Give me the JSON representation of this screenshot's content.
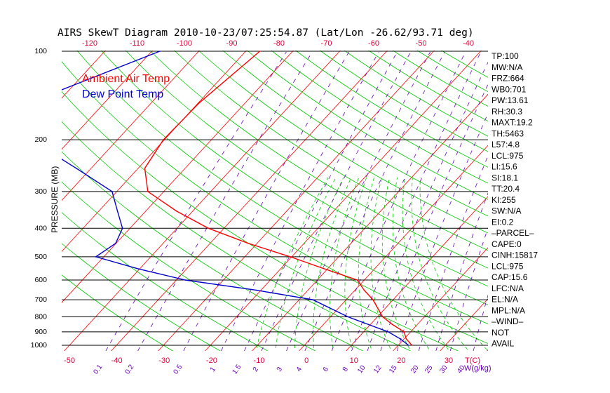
{
  "chart_data": {
    "type": "line",
    "title": "AIRS SkewT Diagram 2010-10-23/07:25:54.87 (Lat/Lon -26.62/93.71 deg)",
    "ylabel": "PRESSURE (MB)",
    "xlabel_unit": "T(C)",
    "mixing_ratio_unit": "W(g/kg)",
    "pressure_ticks": [
      "100",
      "200",
      "300",
      "400",
      "500",
      "600",
      "700",
      "800",
      "900",
      "1000"
    ],
    "top_temp_ticks": [
      "-120",
      "-110",
      "-100",
      "-90",
      "-80",
      "-70",
      "-60",
      "-50",
      "-40"
    ],
    "bottom_temp_ticks": [
      "-50",
      "-40",
      "-30",
      "-20",
      "-10",
      "0",
      "10",
      "20",
      "30"
    ],
    "mixing_ratio_labels": [
      "0.1",
      "0.2",
      "0.5",
      "1",
      "1.5",
      "2",
      "3",
      "4",
      "6",
      "8",
      "10",
      "12",
      "15",
      "20",
      "25",
      "30",
      "40"
    ],
    "legend": [
      {
        "name": "Ambient Air Temp",
        "color": "#ff0000"
      },
      {
        "name": "Dew Point Temp",
        "color": "#0000cc"
      }
    ],
    "series": [
      {
        "name": "Ambient Air Temp",
        "color": "#ff0000",
        "points": [
          {
            "p": 100,
            "t": -67
          },
          {
            "p": 150,
            "t": -69.8
          },
          {
            "p": 200,
            "t": -70.2
          },
          {
            "p": 250,
            "t": -68.6
          },
          {
            "p": 300,
            "t": -63.4
          },
          {
            "p": 350,
            "t": -53.4
          },
          {
            "p": 400,
            "t": -43.3
          },
          {
            "p": 450,
            "t": -31.9
          },
          {
            "p": 500,
            "t": -20.3
          },
          {
            "p": 550,
            "t": -10.6
          },
          {
            "p": 600,
            "t": -1.5
          },
          {
            "p": 650,
            "t": 2.0
          },
          {
            "p": 700,
            "t": 5.7
          },
          {
            "p": 800,
            "t": 11.1
          },
          {
            "p": 850,
            "t": 14.7
          },
          {
            "p": 900,
            "t": 18.6
          },
          {
            "p": 950,
            "t": 20.4
          },
          {
            "p": 1000,
            "t": 22.9
          }
        ]
      },
      {
        "name": "Dew Point Temp",
        "color": "#0000cc",
        "points": [
          {
            "p": 100,
            "t": -88.3
          },
          {
            "p": 150,
            "t": -106.2
          },
          {
            "p": 200,
            "t": -98.5
          },
          {
            "p": 250,
            "t": -83.2
          },
          {
            "p": 300,
            "t": -71.0
          },
          {
            "p": 350,
            "t": -66.0
          },
          {
            "p": 400,
            "t": -61.6
          },
          {
            "p": 450,
            "t": -60.1
          },
          {
            "p": 500,
            "t": -61.7
          },
          {
            "p": 550,
            "t": -50.2
          },
          {
            "p": 600,
            "t": -38.1
          },
          {
            "p": 650,
            "t": -20.9
          },
          {
            "p": 700,
            "t": -7.1
          },
          {
            "p": 800,
            "t": 3.7
          },
          {
            "p": 850,
            "t": 9.6
          },
          {
            "p": 900,
            "t": 15.2
          },
          {
            "p": 950,
            "t": 19.1
          },
          {
            "p": 1000,
            "t": 22.2
          }
        ]
      }
    ],
    "grid": true
  },
  "indices": [
    "TP:100",
    "MW:N/A",
    "FRZ:664",
    "WB0:701",
    "PW:13.61",
    "RH:30.3",
    "MAXT:19.2",
    "TH:5463",
    "L57:4.8",
    "LCL:975",
    "LI:15.6",
    "SI:18.1",
    "TT:20.4",
    "KI:255",
    "SW:N/A",
    "EI:0.2",
    "–PARCEL–",
    "CAPE:0",
    "CINH:15817",
    "LCL:975",
    "CAP:15.6",
    "LFC:N/A",
    "EL:N/A",
    "MPL:N/A",
    "–WIND–",
    "NOT",
    "AVAIL"
  ]
}
